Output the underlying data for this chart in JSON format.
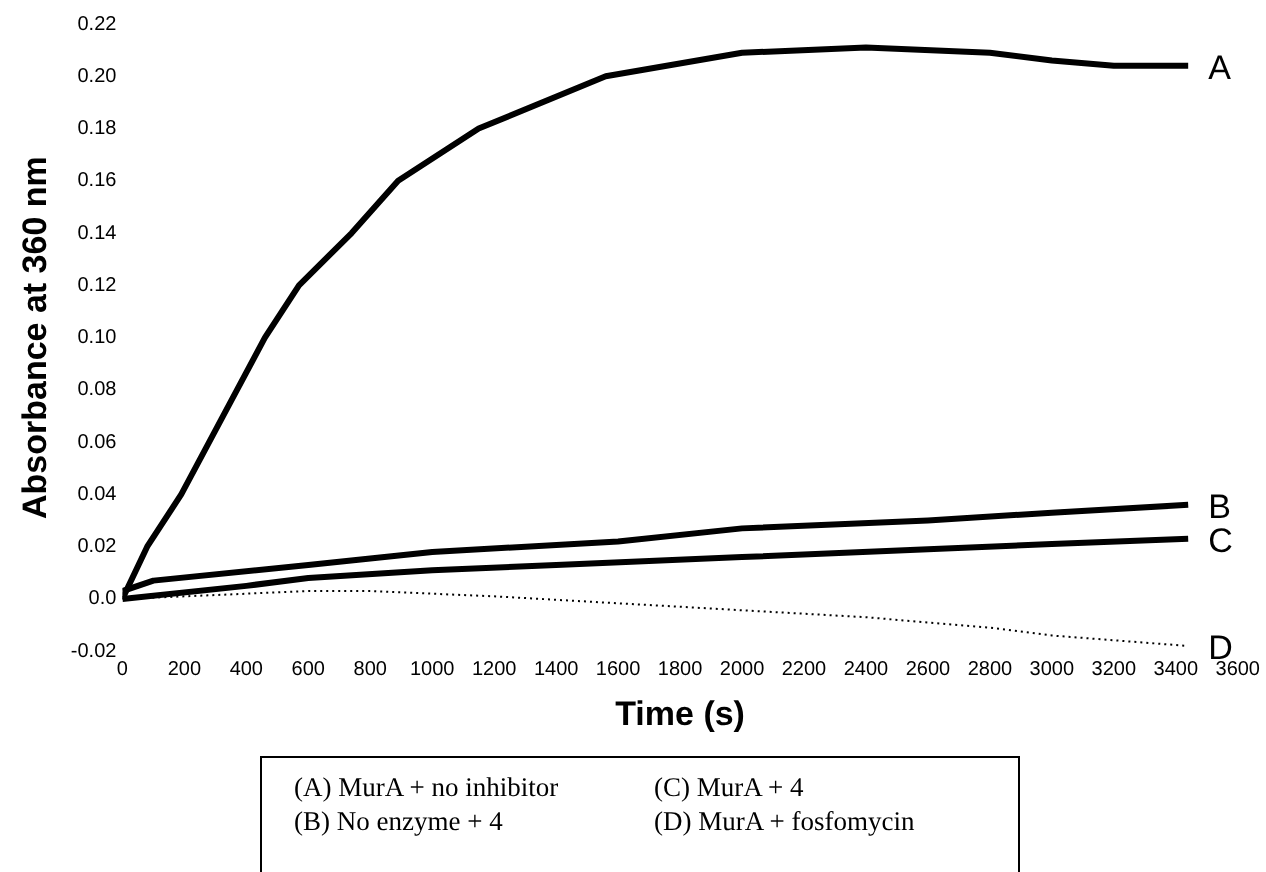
{
  "chart_data": {
    "type": "line",
    "xlabel": "Time (s)",
    "ylabel": "Absorbance at 360 nm",
    "xlim": [
      0,
      3600
    ],
    "xticks": [
      0,
      200,
      400,
      600,
      800,
      1000,
      1200,
      1400,
      1600,
      1800,
      2000,
      2200,
      2400,
      2600,
      2800,
      3000,
      3200,
      3400,
      3600
    ],
    "ylim": [
      -0.02,
      0.22
    ],
    "yticks": [
      {
        "value": -0.02,
        "label": "-0.02"
      },
      {
        "value": 0,
        "label": "0.0"
      },
      {
        "value": 0.02,
        "label": "0.02"
      },
      {
        "value": 0.04,
        "label": "0.04"
      },
      {
        "value": 0.06,
        "label": "0.06"
      },
      {
        "value": 0.08,
        "label": "0.08"
      },
      {
        "value": 0.1,
        "label": "0.10"
      },
      {
        "value": 0.12,
        "label": "0.12"
      },
      {
        "value": 0.14,
        "label": "0.14"
      },
      {
        "value": 0.16,
        "label": "0.16"
      },
      {
        "value": 0.18,
        "label": "0.18"
      },
      {
        "value": 0.2,
        "label": "0.20"
      },
      {
        "value": 0.22,
        "label": "0.22"
      }
    ],
    "grid": false,
    "legend": false,
    "marker": "none",
    "series": [
      {
        "name": "A",
        "color": "#000000",
        "line_style": "solid",
        "x": [
          0,
          80,
          190,
          280,
          370,
          460,
          570,
          740,
          890,
          1150,
          1560,
          2000,
          2400,
          2800,
          3000,
          3200,
          3440
        ],
        "values": [
          0,
          0.02,
          0.04,
          0.06,
          0.08,
          0.1,
          0.12,
          0.14,
          0.16,
          0.18,
          0.2,
          0.209,
          0.211,
          0.209,
          0.206,
          0.204,
          0.204
        ]
      },
      {
        "name": "B",
        "color": "#000000",
        "line_style": "solid",
        "x": [
          0,
          100,
          600,
          1000,
          1600,
          2000,
          2600,
          3000,
          3440
        ],
        "values": [
          0.003,
          0.007,
          0.013,
          0.018,
          0.022,
          0.027,
          0.03,
          0.033,
          0.036
        ]
      },
      {
        "name": "C",
        "color": "#000000",
        "line_style": "solid",
        "x": [
          0,
          400,
          600,
          1000,
          1400,
          2000,
          2600,
          3000,
          3440
        ],
        "values": [
          0,
          0.005,
          0.008,
          0.011,
          0.013,
          0.016,
          0.019,
          0.021,
          0.023
        ]
      },
      {
        "name": "D",
        "color": "#000000",
        "line_style": "dotted",
        "x": [
          0,
          600,
          800,
          1200,
          1800,
          2400,
          2800,
          3000,
          3440
        ],
        "values": [
          0,
          0.003,
          0.003,
          0.001,
          -0.003,
          -0.007,
          -0.011,
          -0.014,
          -0.018
        ]
      }
    ],
    "annotations": [
      "(A) MurA + no inhibitor",
      "(C) MurA + 4",
      "(B) No enzyme + 4",
      "(D) MurA + fosfomycin"
    ]
  }
}
